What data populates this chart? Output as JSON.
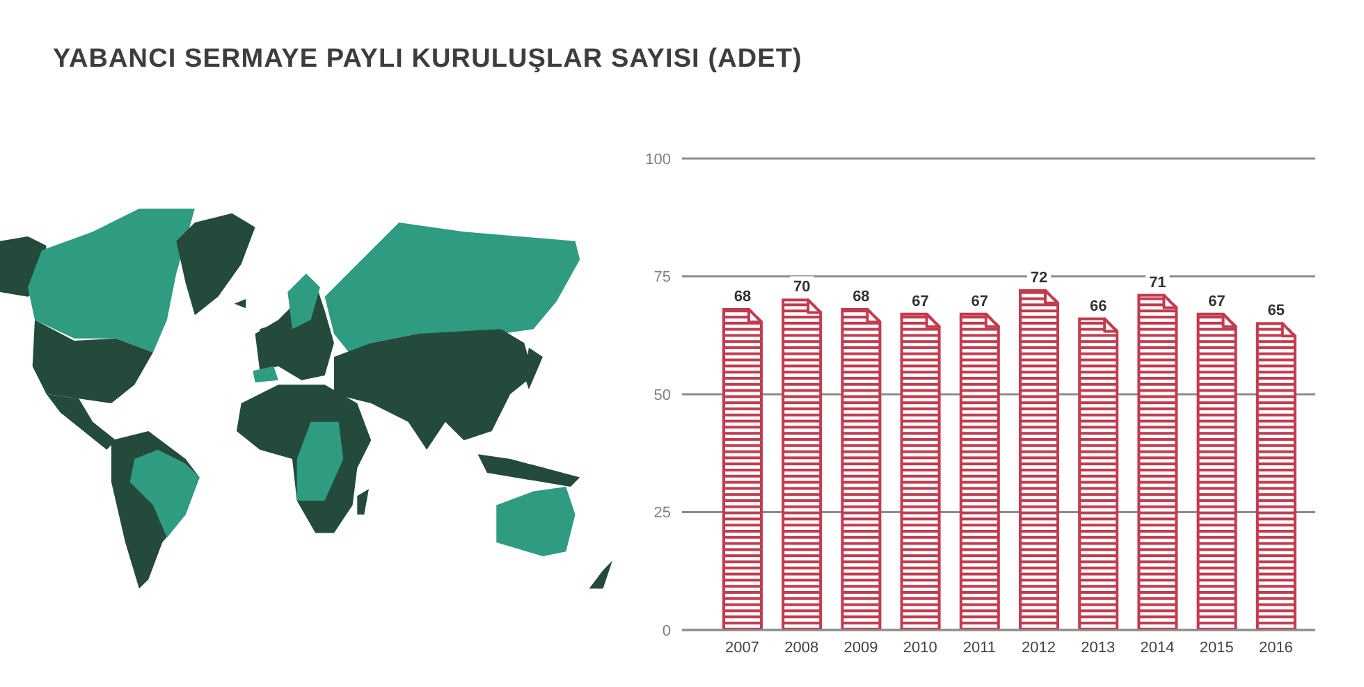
{
  "chart_data": {
    "type": "bar",
    "title": "YABANCI SERMAYE PAYLI KURULUŞLAR SAYISI (ADET)",
    "categories": [
      "2007",
      "2008",
      "2009",
      "2010",
      "2011",
      "2012",
      "2013",
      "2014",
      "2015",
      "2016"
    ],
    "values": [
      68,
      70,
      68,
      67,
      67,
      72,
      66,
      71,
      67,
      65
    ],
    "color": "#c33b4e",
    "ylim": [
      0,
      100
    ],
    "yticks": [
      0,
      25,
      50,
      75,
      100
    ],
    "grid": "y",
    "data_labels": true
  }
}
